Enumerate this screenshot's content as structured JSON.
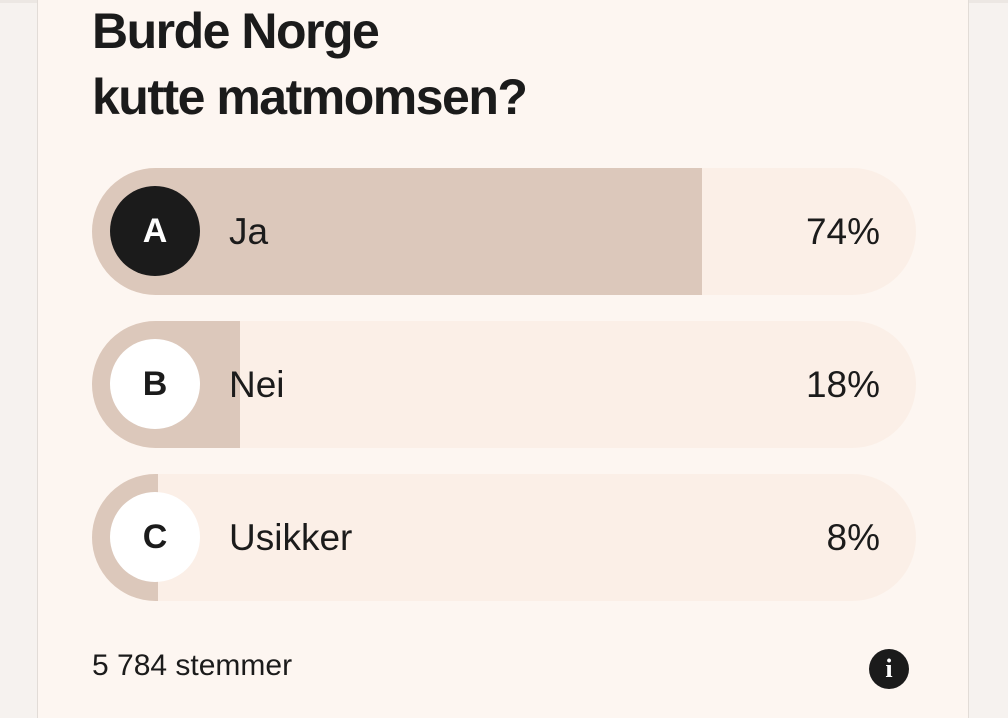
{
  "poll": {
    "title_line1": "Burde Norge",
    "title_line2": "kutte matmomsen?",
    "options": [
      {
        "letter": "A",
        "label": "Ja",
        "percent_text": "74%",
        "percent": 74,
        "selected": true
      },
      {
        "letter": "B",
        "label": "Nei",
        "percent_text": "18%",
        "percent": 18,
        "selected": false
      },
      {
        "letter": "C",
        "label": "Usikker",
        "percent_text": "8%",
        "percent": 8,
        "selected": false
      }
    ],
    "votes": "5 784 stemmer",
    "info_icon": "i"
  },
  "colors": {
    "card_background": "#fdf6f1",
    "option_background": "#fbefe7",
    "result_fill": "#dcc8bb",
    "text": "#1b1b1b",
    "selected_badge": "#1b1b1b"
  },
  "icons": {
    "info": "info-icon"
  }
}
